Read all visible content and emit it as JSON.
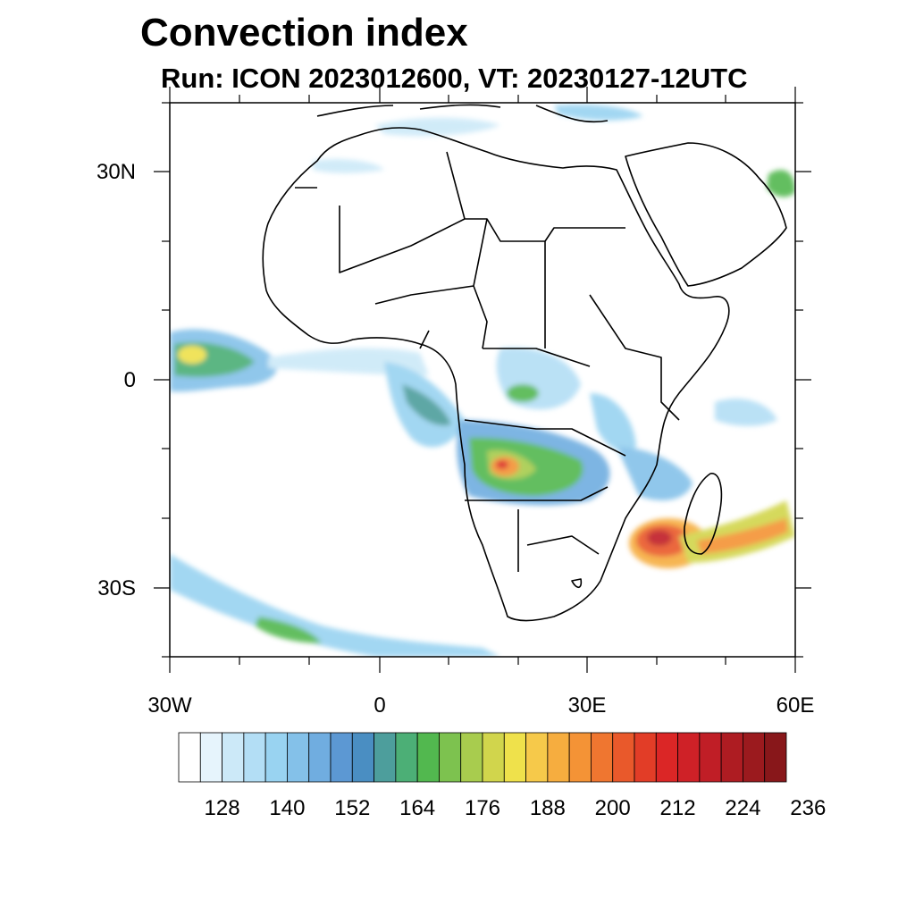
{
  "title": "Convection index",
  "subtitle": "Run: ICON 2023012600,  VT: 20230127-12UTC",
  "map": {
    "lat_labels": [
      "30N",
      "0",
      "30S"
    ],
    "lon_labels": [
      "30W",
      "0",
      "30E",
      "60E"
    ],
    "extent": {
      "lon_min": -30,
      "lon_max": 60,
      "lat_min": -40,
      "lat_max": 40
    }
  },
  "colorbar": {
    "tick_labels": [
      "128",
      "140",
      "152",
      "164",
      "176",
      "188",
      "200",
      "212",
      "224",
      "236"
    ],
    "colors": [
      "#ffffff",
      "#e6f4fc",
      "#cce9f8",
      "#b3def5",
      "#99d3f1",
      "#84c1e9",
      "#70ade0",
      "#5c98d3",
      "#4a8ec2",
      "#4d9e9c",
      "#4caf76",
      "#52b84f",
      "#7dc24f",
      "#a8cc4e",
      "#d1d54c",
      "#efe14b",
      "#f6c94a",
      "#f6ad3f",
      "#f49336",
      "#ef7630",
      "#e9592b",
      "#e23d27",
      "#db2626",
      "#cf2127",
      "#c01e26",
      "#ae1c22",
      "#9b1a1e",
      "#88171a"
    ]
  }
}
